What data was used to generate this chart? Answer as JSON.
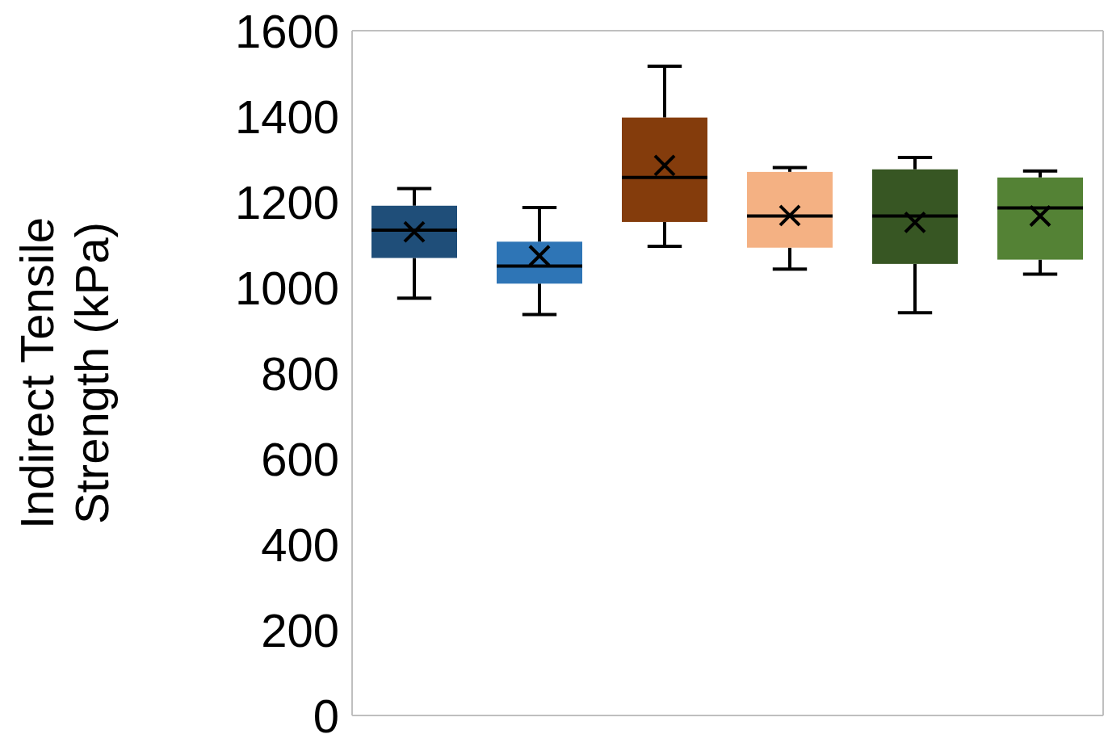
{
  "chart_data": {
    "type": "box",
    "ylabel": "Indirect Tensile Strength (kPa)",
    "categories": [
      null,
      null,
      null,
      null,
      null,
      null
    ],
    "colors": [
      "#1f4e79",
      "#2e75b6",
      "#843c0c",
      "#f4b183",
      "#375623",
      "#548235"
    ],
    "boxes": [
      {
        "low": 975,
        "q1": 1069,
        "median": 1134,
        "q3": 1191,
        "high": 1231,
        "mean": 1130
      },
      {
        "low": 937,
        "q1": 1009,
        "median": 1050,
        "q3": 1107,
        "high": 1187,
        "mean": 1074
      },
      {
        "low": 1096,
        "q1": 1153,
        "median": 1257,
        "q3": 1397,
        "high": 1517,
        "mean": 1285
      },
      {
        "low": 1043,
        "q1": 1093,
        "median": 1167,
        "q3": 1270,
        "high": 1280,
        "mean": 1168
      },
      {
        "low": 941,
        "q1": 1055,
        "median": 1167,
        "q3": 1276,
        "high": 1304,
        "mean": 1152
      },
      {
        "low": 1031,
        "q1": 1065,
        "median": 1186,
        "q3": 1257,
        "high": 1272,
        "mean": 1167
      }
    ],
    "ylim": [
      0,
      1600
    ],
    "yticks": [
      0,
      200,
      400,
      600,
      800,
      1000,
      1200,
      1400,
      1600
    ],
    "grid": false
  }
}
